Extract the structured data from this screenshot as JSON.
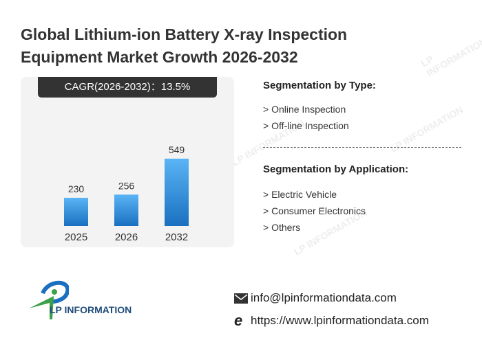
{
  "title": "Global Lithium-ion Battery X-ray Inspection Equipment Market Growth 2026-2032",
  "cagr_label": "CAGR(2026-2032)：13.5%",
  "chart_data": {
    "type": "bar",
    "categories": [
      "2025",
      "2026",
      "2032"
    ],
    "values": [
      230,
      256,
      549
    ],
    "ylim": [
      0,
      549
    ],
    "grid": false,
    "bar_color_top": "#5ab4f5",
    "bar_color_bottom": "#1a70c0"
  },
  "segmentation": {
    "type_heading": "Segmentation by Type:",
    "types": [
      "> Online Inspection",
      "> Off-line Inspection"
    ],
    "application_heading": "Segmentation by Application:",
    "applications": [
      "> Electric Vehicle",
      "> Consumer Electronics",
      "> Others"
    ]
  },
  "footer": {
    "logo_text": "LP INFORMATION",
    "email": "info@lpinformationdata.com",
    "website": "https://www.lpinformationdata.com"
  },
  "watermark": "LP INFORMATION"
}
